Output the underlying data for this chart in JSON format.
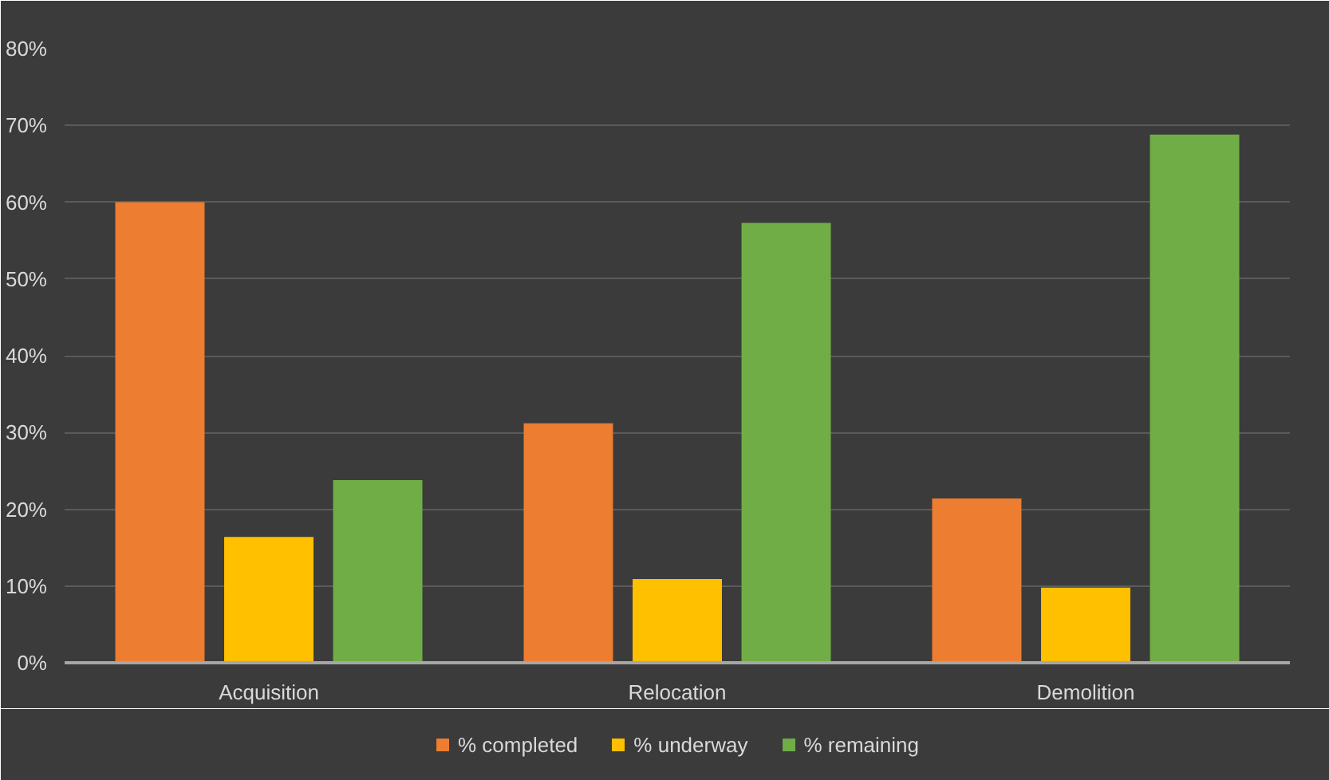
{
  "chart_data": {
    "type": "bar",
    "categories": [
      "Acquisition",
      "Relocation",
      "Demolition"
    ],
    "series": [
      {
        "name": "% completed",
        "color": "#ed7d31",
        "values": [
          60,
          31.2,
          21.4
        ]
      },
      {
        "name": "% underway",
        "color": "#ffc000",
        "values": [
          16.4,
          10.9,
          9.8
        ]
      },
      {
        "name": "% remaining",
        "color": "#70ad47",
        "values": [
          23.8,
          57.3,
          68.8
        ]
      }
    ],
    "ylim": [
      0,
      80
    ],
    "yticks": [
      {
        "value": 0,
        "label": "0%"
      },
      {
        "value": 10,
        "label": "10%"
      },
      {
        "value": 20,
        "label": "20%"
      },
      {
        "value": 30,
        "label": "30%"
      },
      {
        "value": 40,
        "label": "40%"
      },
      {
        "value": 50,
        "label": "50%"
      },
      {
        "value": 60,
        "label": "60%"
      },
      {
        "value": 70,
        "label": "70%"
      },
      {
        "value": 80,
        "label": "80%"
      }
    ],
    "grid": "y",
    "legend": "bottom"
  }
}
